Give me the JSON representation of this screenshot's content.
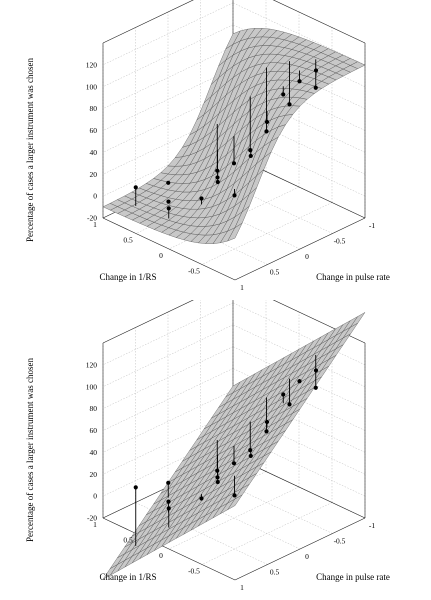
{
  "chart_data": [
    {
      "type": "surface3d",
      "surface": "sigmoid",
      "xlabel": "Change in pulse rate",
      "ylabel": "Change in 1/RS",
      "zlabel": "Percentage of cases a larger instrument was chosen",
      "xlim": [
        -1,
        1
      ],
      "ylim": [
        -1,
        1
      ],
      "zlim": [
        -20,
        140
      ],
      "xticks": [
        "-1",
        "-0.5",
        "0",
        "0.5",
        "1"
      ],
      "yticks": [
        "-0.5",
        "0",
        "0.5",
        "1"
      ],
      "zticks": [
        "-20",
        "0",
        "20",
        "40",
        "60",
        "80",
        "100",
        "120"
      ],
      "grid": true,
      "points": [
        {
          "x": -0.5,
          "y": -0.75,
          "z": 122
        },
        {
          "x": -0.75,
          "y": -0.5,
          "z": 92
        },
        {
          "x": -0.5,
          "y": -0.5,
          "z": 105
        },
        {
          "x": -0.25,
          "y": -0.5,
          "z": 100
        },
        {
          "x": 0,
          "y": -0.5,
          "z": 82
        },
        {
          "x": -0.6,
          "y": -0.25,
          "z": 74
        },
        {
          "x": 0.25,
          "y": -0.5,
          "z": 58
        },
        {
          "x": -0.5,
          "y": 0,
          "z": 45
        },
        {
          "x": 0.5,
          "y": -0.5,
          "z": 29
        },
        {
          "x": -0.25,
          "y": 0,
          "z": 35
        },
        {
          "x": 0,
          "y": 0,
          "z": 30
        },
        {
          "x": 0.25,
          "y": 0,
          "z": 20
        },
        {
          "x": 0.5,
          "y": 0,
          "z": 12
        },
        {
          "x": 0.5,
          "y": 0.5,
          "z": -5
        },
        {
          "x": 0.75,
          "y": 0.75,
          "z": 8
        },
        {
          "x": -0.25,
          "y": 0.5,
          "z": 2
        },
        {
          "x": 0.25,
          "y": 0.75,
          "z": -2
        },
        {
          "x": 0,
          "y": 0.25,
          "z": 10
        },
        {
          "x": 0.75,
          "y": 0.25,
          "z": 3
        }
      ]
    },
    {
      "type": "surface3d",
      "surface": "plane",
      "xlabel": "Change in pulse rate",
      "ylabel": "Change in 1/RS",
      "zlabel": "Percentage of cases a larger instrument was chosen",
      "xlim": [
        -1,
        1
      ],
      "ylim": [
        -1,
        1
      ],
      "zlim": [
        -20,
        140
      ],
      "xticks": [
        "-1",
        "-0.5",
        "0",
        "0.5",
        "1"
      ],
      "yticks": [
        "-0.5",
        "0",
        "0.5",
        "1"
      ],
      "zticks": [
        "-20",
        "0",
        "20",
        "40",
        "60",
        "80",
        "100",
        "120"
      ],
      "grid": true,
      "points": [
        {
          "x": -0.5,
          "y": -0.75,
          "z": 122
        },
        {
          "x": -0.75,
          "y": -0.5,
          "z": 92
        },
        {
          "x": -0.5,
          "y": -0.5,
          "z": 105
        },
        {
          "x": -0.25,
          "y": -0.5,
          "z": 100
        },
        {
          "x": 0,
          "y": -0.5,
          "z": 82
        },
        {
          "x": -0.6,
          "y": -0.25,
          "z": 74
        },
        {
          "x": 0.25,
          "y": -0.5,
          "z": 58
        },
        {
          "x": -0.5,
          "y": 0,
          "z": 45
        },
        {
          "x": 0.5,
          "y": -0.5,
          "z": 29
        },
        {
          "x": -0.25,
          "y": 0,
          "z": 35
        },
        {
          "x": 0,
          "y": 0,
          "z": 30
        },
        {
          "x": 0.25,
          "y": 0,
          "z": 20
        },
        {
          "x": 0.5,
          "y": 0,
          "z": 12
        },
        {
          "x": 0.5,
          "y": 0.5,
          "z": -5
        },
        {
          "x": 0.75,
          "y": 0.75,
          "z": 8
        },
        {
          "x": -0.25,
          "y": 0.5,
          "z": 2
        },
        {
          "x": 0.25,
          "y": 0.75,
          "z": -2
        },
        {
          "x": 0,
          "y": 0.25,
          "z": 10
        },
        {
          "x": 0.75,
          "y": 0.25,
          "z": 3
        }
      ]
    }
  ]
}
